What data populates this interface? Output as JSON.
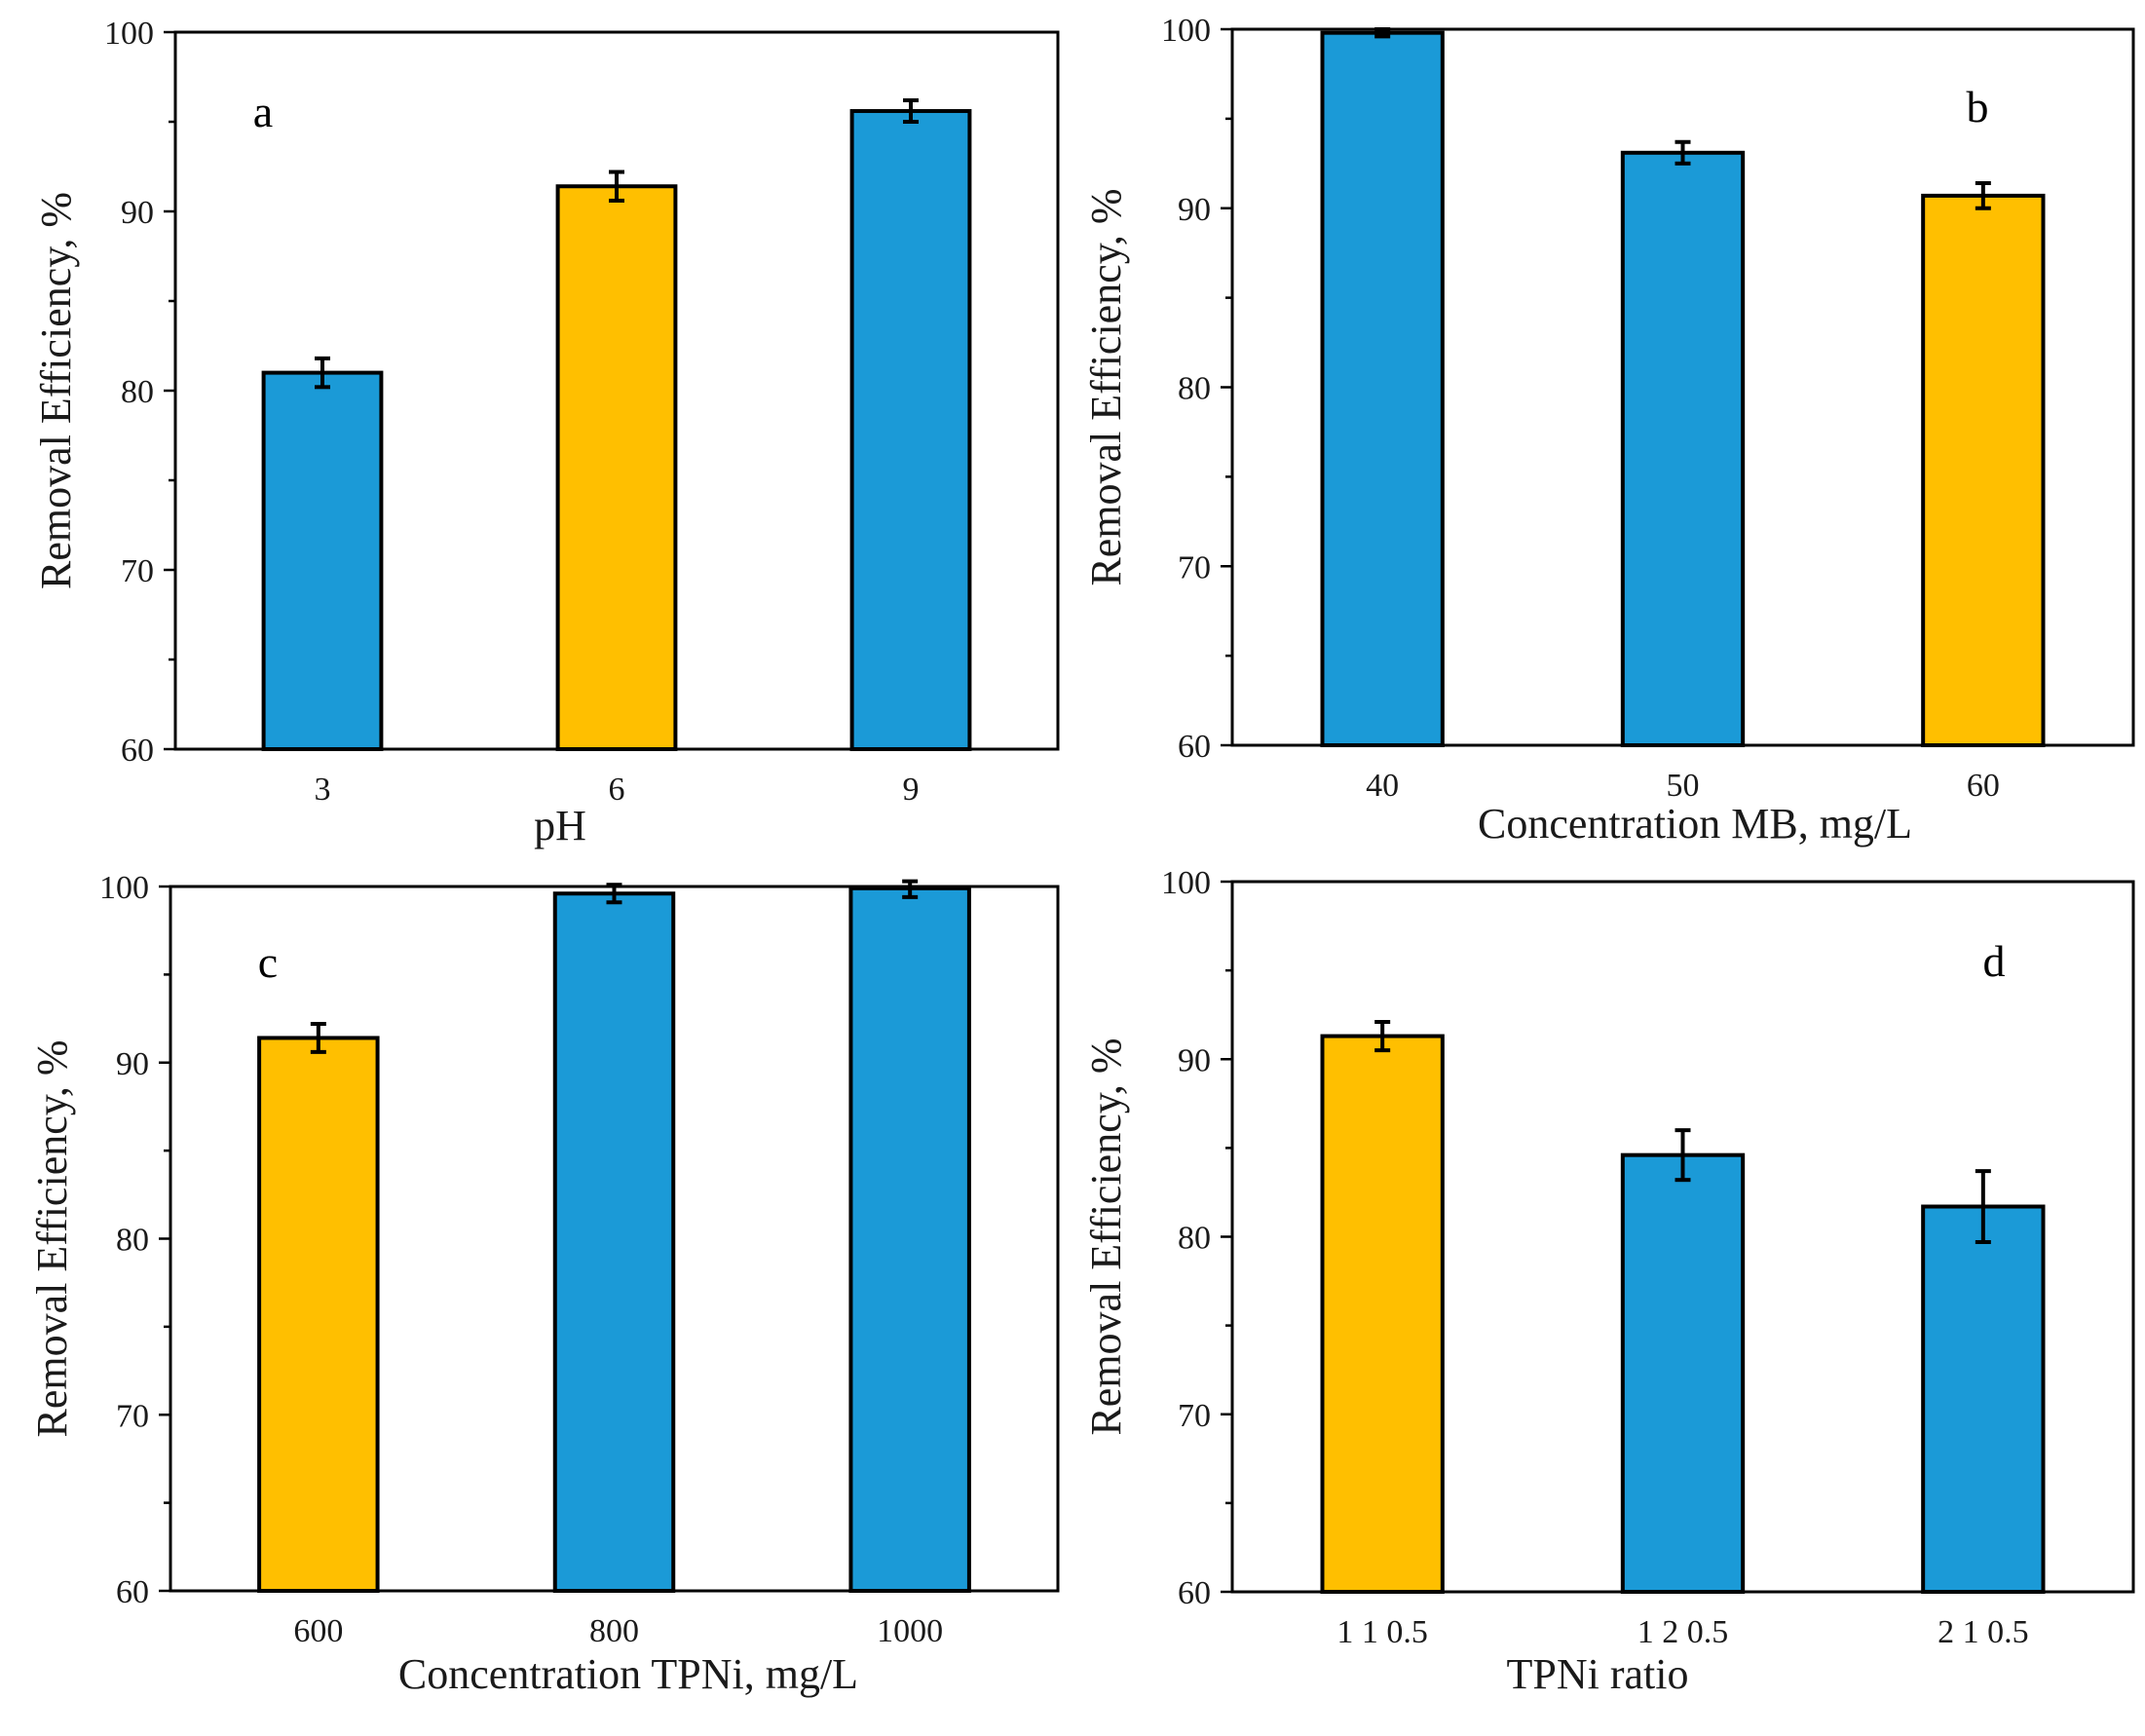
{
  "colors": {
    "blue": "#1b9ad7",
    "yellow": "#ffbf00"
  },
  "chart_data": [
    {
      "panel": "a",
      "type": "bar",
      "categories": [
        "3",
        "6",
        "9"
      ],
      "values": [
        81.0,
        91.4,
        95.6
      ],
      "errors": [
        0.8,
        0.8,
        0.6
      ],
      "bar_colors": [
        "blue",
        "yellow",
        "blue"
      ],
      "ylim": [
        60,
        100
      ],
      "yticks": [
        "60",
        "70",
        "80",
        "90",
        "100"
      ],
      "xlabel": "pH",
      "ylabel": "Removal Efficiency, %",
      "label_position": "top-left"
    },
    {
      "panel": "b",
      "type": "bar",
      "categories": [
        "40",
        "50",
        "60"
      ],
      "values": [
        99.8,
        93.1,
        90.7
      ],
      "errors": [
        0.2,
        0.6,
        0.7
      ],
      "bar_colors": [
        "blue",
        "blue",
        "yellow"
      ],
      "ylim": [
        60,
        100
      ],
      "yticks": [
        "60",
        "70",
        "80",
        "90",
        "100"
      ],
      "xlabel": "Concentration MB, mg/L",
      "ylabel": "Removal Efficiency, %",
      "label_position": "top-right"
    },
    {
      "panel": "c",
      "type": "bar",
      "categories": [
        "600",
        "800",
        "1000"
      ],
      "values": [
        91.4,
        99.6,
        99.9
      ],
      "errors": [
        0.8,
        0.5,
        0.5
      ],
      "bar_colors": [
        "yellow",
        "blue",
        "blue"
      ],
      "ylim": [
        60,
        100
      ],
      "yticks": [
        "60",
        "70",
        "80",
        "90",
        "100"
      ],
      "xlabel": "Concentration TPNi, mg/L",
      "ylabel": "Removal Efficiency, %",
      "label_position": "top-left"
    },
    {
      "panel": "d",
      "type": "bar",
      "categories": [
        "1 1 0.5",
        "1 2 0.5",
        "2 1 0.5"
      ],
      "values": [
        91.3,
        84.6,
        81.7
      ],
      "errors": [
        0.8,
        1.4,
        2.0
      ],
      "bar_colors": [
        "yellow",
        "blue",
        "blue"
      ],
      "ylim": [
        60,
        100
      ],
      "yticks": [
        "60",
        "70",
        "80",
        "90",
        "100"
      ],
      "xlabel": "TPNi ratio",
      "ylabel": "Removal Efficiency, %",
      "label_position": "top-right"
    }
  ]
}
